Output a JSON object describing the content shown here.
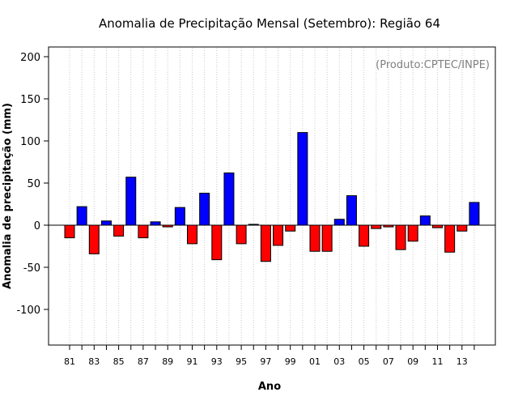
{
  "chart_data": {
    "type": "bar",
    "title": "Anomalia de Precipitação Mensal (Setembro): Região 64",
    "xlabel": "Ano",
    "ylabel": "Anomalia de precipitação (mm)",
    "credit": "(Produto:CPTEC/INPE)",
    "ylim": [
      -140,
      210
    ],
    "yticks": [
      -100,
      -50,
      0,
      50,
      100,
      150,
      200
    ],
    "grid": "vertical-dotted",
    "positive_color": "#0000ff",
    "negative_color": "#ff0000",
    "categories": [
      "81",
      "82",
      "83",
      "84",
      "85",
      "86",
      "87",
      "88",
      "89",
      "90",
      "91",
      "92",
      "93",
      "94",
      "95",
      "96",
      "97",
      "98",
      "99",
      "00",
      "01",
      "02",
      "03",
      "04",
      "05",
      "06",
      "07",
      "08",
      "09",
      "10",
      "11",
      "12",
      "13",
      "14"
    ],
    "tick_labels": [
      "81",
      "83",
      "85",
      "87",
      "89",
      "91",
      "93",
      "95",
      "97",
      "99",
      "01",
      "03",
      "05",
      "07",
      "09",
      "11",
      "13"
    ],
    "values": [
      -15,
      22,
      -34,
      5,
      -13,
      57,
      -15,
      4,
      -2,
      21,
      -22,
      38,
      -41,
      62,
      -22,
      1,
      -43,
      -24,
      -7,
      110,
      -31,
      -31,
      7,
      35,
      -25,
      -4,
      -2,
      -29,
      -19,
      11,
      -3,
      -32,
      -7,
      27
    ]
  }
}
